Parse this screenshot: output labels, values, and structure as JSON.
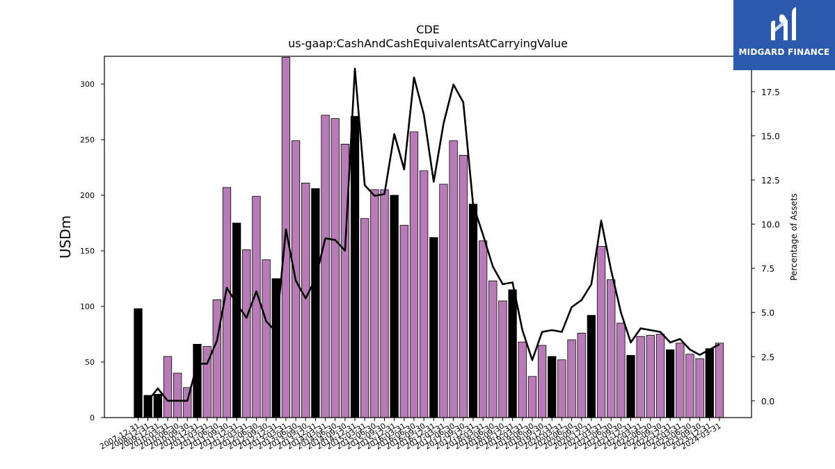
{
  "brand": {
    "name": "MIDGARD FINANCE",
    "logo_icon": "midgard-m-logo-icon",
    "color": "#2b5aad"
  },
  "chart_data": {
    "type": "bar",
    "title": "CDE",
    "subtitle": "us-gaap:CashAndCashEquivalentsAtCarryingValue",
    "ylabel": "USDm",
    "y2label": "Percentage of Assets",
    "ylim": [
      0,
      325
    ],
    "y2lim": [
      -0.95,
      19.5
    ],
    "yticks": [
      0,
      50,
      100,
      150,
      200,
      250,
      300
    ],
    "y2ticks": [
      0.0,
      2.5,
      5.0,
      7.5,
      10.0,
      12.5,
      15.0,
      17.5
    ],
    "grid": false,
    "colors": {
      "annual": "#000000",
      "quarterly": "#b87bb8",
      "line": "#000000"
    },
    "categories": [
      "2007-12-31",
      "2008-12-31",
      "2009-12-31",
      "2010-03-31",
      "2010-06-30",
      "2010-09-30",
      "2010-12-31",
      "2011-03-31",
      "2011-06-30",
      "2011-09-30",
      "2011-12-31",
      "2012-03-31",
      "2012-06-30",
      "2012-09-30",
      "2012-12-31",
      "2013-03-31",
      "2013-06-30",
      "2013-09-30",
      "2013-12-31",
      "2014-03-31",
      "2014-06-30",
      "2014-09-30",
      "2014-12-31",
      "2015-03-31",
      "2015-06-30",
      "2015-09-30",
      "2015-12-31",
      "2016-03-31",
      "2016-06-30",
      "2016-09-30",
      "2016-12-31",
      "2017-03-31",
      "2017-06-30",
      "2017-09-30",
      "2017-12-31",
      "2018-03-31",
      "2018-06-30",
      "2018-09-30",
      "2018-12-31",
      "2019-03-31",
      "2019-06-30",
      "2019-09-30",
      "2019-12-31",
      "2020-03-31",
      "2020-06-30",
      "2020-09-30",
      "2020-12-31",
      "2021-03-31",
      "2021-06-30",
      "2021-09-30",
      "2021-12-31",
      "2022-03-31",
      "2022-06-30",
      "2022-09-30",
      "2022-12-31",
      "2023-03-31",
      "2023-06-30",
      "2023-09-30",
      "2023-12-31",
      "2024-03-31"
    ],
    "series": [
      {
        "kind": "bar",
        "values": [
          98,
          20,
          21,
          55,
          40,
          27,
          66,
          64,
          106,
          207,
          175,
          151,
          199,
          142,
          125,
          324,
          249,
          211,
          206,
          272,
          269,
          246,
          271,
          179,
          205,
          205,
          200,
          173,
          257,
          222,
          162,
          210,
          249,
          236,
          192,
          159,
          123,
          105,
          115,
          68,
          37,
          65,
          55,
          52,
          70,
          76,
          92,
          154,
          124,
          85,
          56,
          73,
          74,
          75,
          61,
          67,
          57,
          53,
          62,
          67
        ],
        "annual": [
          true,
          true,
          true,
          false,
          false,
          false,
          true,
          false,
          false,
          false,
          true,
          false,
          false,
          false,
          true,
          false,
          false,
          false,
          true,
          false,
          false,
          false,
          true,
          false,
          false,
          false,
          true,
          false,
          false,
          false,
          true,
          false,
          false,
          false,
          true,
          false,
          false,
          false,
          true,
          false,
          false,
          false,
          true,
          false,
          false,
          false,
          true,
          false,
          false,
          false,
          true,
          false,
          false,
          false,
          true,
          false,
          false,
          false,
          true,
          false
        ]
      },
      {
        "kind": "line",
        "axis": "y2",
        "values": [
          null,
          0.0,
          0.7,
          0.0,
          0.0,
          0.0,
          2.1,
          2.1,
          3.4,
          6.4,
          5.5,
          4.7,
          6.2,
          4.5,
          3.9,
          9.7,
          6.8,
          5.8,
          6.9,
          9.2,
          9.1,
          8.5,
          18.8,
          12.2,
          11.6,
          11.7,
          15.1,
          13.1,
          18.3,
          16.2,
          12.4,
          15.7,
          17.9,
          16.9,
          11.1,
          9.4,
          7.6,
          6.6,
          6.7,
          4.0,
          2.3,
          3.9,
          4.0,
          3.9,
          5.3,
          5.7,
          6.6,
          10.2,
          7.4,
          5.0,
          3.3,
          4.1,
          4.0,
          3.9,
          3.3,
          3.5,
          2.9,
          2.6,
          2.9,
          3.2
        ]
      }
    ]
  }
}
